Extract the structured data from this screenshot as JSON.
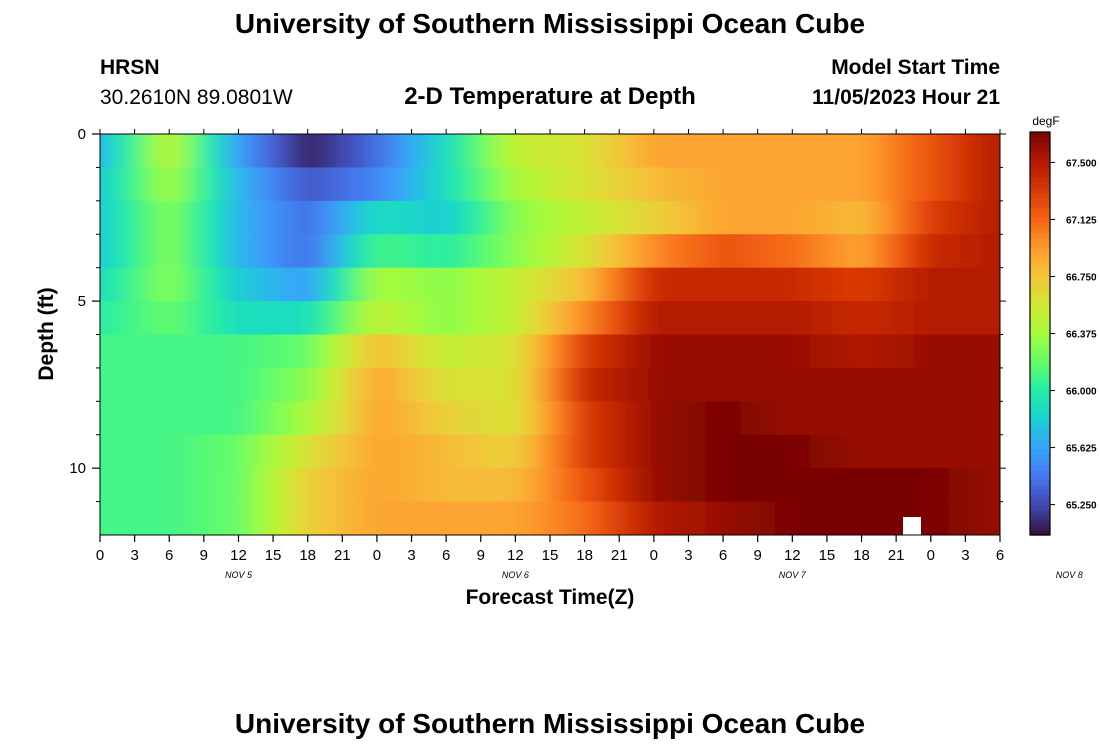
{
  "header": {
    "title": "University of Southern Mississippi Ocean Cube",
    "station": "HRSN",
    "coords": "30.2610N  89.0801W",
    "plot_title": "2-D Temperature at Depth",
    "model_label": "Model Start Time",
    "model_time": "11/05/2023 Hour 21"
  },
  "footer": {
    "title": "University of Southern Mississippi Ocean Cube"
  },
  "chart_data": {
    "type": "heatmap",
    "title": "2-D Temperature at Depth",
    "xlabel": "Forecast Time(Z)",
    "ylabel": "Depth (ft)",
    "x_tick_labels": [
      "0",
      "3",
      "6",
      "9",
      "12",
      "15",
      "18",
      "21",
      "0",
      "3",
      "6",
      "9",
      "12",
      "15",
      "18",
      "21",
      "0",
      "3",
      "6",
      "9",
      "12",
      "15",
      "18",
      "21",
      "0",
      "3",
      "6"
    ],
    "day_labels": [
      "NOV 5",
      "NOV 6",
      "NOV 7",
      "NOV 8"
    ],
    "y_ticks": [
      0,
      5,
      10
    ],
    "y_tick_labels": [
      "0",
      "5",
      "10"
    ],
    "ylim": [
      0,
      12
    ],
    "colorbar": {
      "unit": "degF",
      "ticks": [
        "65.250",
        "65.625",
        "66.000",
        "66.375",
        "66.750",
        "67.125",
        "67.500"
      ],
      "range": [
        65.05,
        67.7
      ],
      "colors": [
        "#30123b",
        "#4145ab",
        "#4675ed",
        "#39a2fc",
        "#1bcfd4",
        "#24eca6",
        "#61fc6c",
        "#a4fc3b",
        "#d1e834",
        "#f3c63a",
        "#fe9b2d",
        "#f36315",
        "#d93806",
        "#b11901",
        "#7a0402"
      ]
    },
    "depth_levels_ft": [
      0.5,
      1.5,
      2.5,
      3.5,
      4.5,
      5.5,
      6.5,
      7.5,
      8.5,
      9.5,
      10.5,
      11.5
    ],
    "time_hours": [
      0,
      6,
      12,
      18,
      24,
      30,
      36,
      42,
      48,
      54,
      60,
      66,
      72,
      78
    ],
    "temperature_degF": [
      [
        65.7,
        66.5,
        65.6,
        65.1,
        65.4,
        65.9,
        66.5,
        66.6,
        66.9,
        66.9,
        66.9,
        66.9,
        67.2,
        67.5
      ],
      [
        65.8,
        66.4,
        65.7,
        65.3,
        65.5,
        65.9,
        66.4,
        66.6,
        66.8,
        66.9,
        66.9,
        66.9,
        67.2,
        67.5
      ],
      [
        65.8,
        66.3,
        65.7,
        65.4,
        65.9,
        65.8,
        66.3,
        66.5,
        66.7,
        66.9,
        66.9,
        66.8,
        67.3,
        67.5
      ],
      [
        65.8,
        66.3,
        65.7,
        65.4,
        66.1,
        66.0,
        66.3,
        66.6,
        67.0,
        67.2,
        67.1,
        66.9,
        67.4,
        67.5
      ],
      [
        65.9,
        66.3,
        65.8,
        65.6,
        66.4,
        66.3,
        66.5,
        66.8,
        67.4,
        67.4,
        67.4,
        67.3,
        67.5,
        67.5
      ],
      [
        66.0,
        66.2,
        65.9,
        65.9,
        66.5,
        66.3,
        66.5,
        67.0,
        67.5,
        67.5,
        67.5,
        67.4,
        67.5,
        67.5
      ],
      [
        66.1,
        66.1,
        66.1,
        66.2,
        66.8,
        66.5,
        66.6,
        67.3,
        67.6,
        67.6,
        67.6,
        67.5,
        67.6,
        67.6
      ],
      [
        66.1,
        66.1,
        66.1,
        66.3,
        66.9,
        66.6,
        66.6,
        67.4,
        67.6,
        67.6,
        67.6,
        67.6,
        67.6,
        67.6
      ],
      [
        66.1,
        66.1,
        66.1,
        66.4,
        66.9,
        66.7,
        66.6,
        67.3,
        67.6,
        67.7,
        67.6,
        67.6,
        67.6,
        67.6
      ],
      [
        66.1,
        66.1,
        66.2,
        66.6,
        66.9,
        66.8,
        66.7,
        67.3,
        67.6,
        67.7,
        67.7,
        67.6,
        67.6,
        67.6
      ],
      [
        66.1,
        66.1,
        66.2,
        66.7,
        66.9,
        66.8,
        66.8,
        67.2,
        67.6,
        67.7,
        67.7,
        67.7,
        67.7,
        67.6
      ],
      [
        66.1,
        66.1,
        66.2,
        66.7,
        66.9,
        66.9,
        66.9,
        67.1,
        67.5,
        67.6,
        67.7,
        67.7,
        67.7,
        67.6
      ]
    ]
  }
}
